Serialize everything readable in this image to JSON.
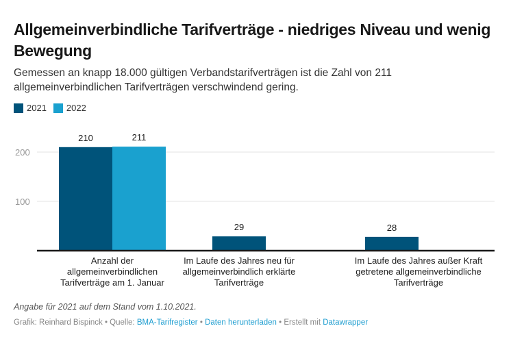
{
  "header": {
    "title": "Allgemeinverbindliche Tarifverträge - niedriges Niveau und wenig Bewegung",
    "subtitle": "Gemessen an knapp 18.000 gültigen Verbandstarifverträgen ist die Zahl von 211 allgemeinverbindlichen Tarifverträgen verschwindend gering."
  },
  "legend": [
    {
      "label": "2021",
      "color": "#00537a"
    },
    {
      "label": "2022",
      "color": "#1aa1cf"
    }
  ],
  "footer": {
    "note": "Angabe für 2021 auf dem Stand vom 1.10.2021.",
    "grafik": "Grafik: Reinhard Bispinck",
    "sep": " • ",
    "quelle_prefix": "Quelle: ",
    "quelle_link": "BMA-Tarifregister",
    "download_link": "Daten herunterladen",
    "created_prefix": "Erstellt mit ",
    "created_link": "Datawrapper"
  },
  "chart_data": {
    "type": "bar",
    "title": "Allgemeinverbindliche Tarifverträge - niedriges Niveau und wenig Bewegung",
    "xlabel": "",
    "ylabel": "",
    "ylim": [
      0,
      200
    ],
    "yticks": [
      100,
      200
    ],
    "grid": true,
    "legend_position": "top-left",
    "categories": [
      "Anzahl der allgemeinverbindlichen Tarifverträge am 1. Januar",
      "Im Laufe des Jahres neu für allgemeinverbindlich erklärte Tarifverträge",
      "Im Laufe des Jahres außer Kraft getretene allgemeinverbindliche Tarifverträge"
    ],
    "category_lines": [
      [
        "Anzahl der",
        "allgemeinverbindlichen",
        "Tarifverträge am 1. Januar"
      ],
      [
        "Im Laufe des Jahres neu für",
        "allgemeinverbindlich erklärte",
        "Tarifverträge"
      ],
      [
        "Im Laufe des Jahres außer Kraft",
        "getretene allgemeinverbindliche",
        "Tarifverträge"
      ]
    ],
    "series": [
      {
        "name": "2021",
        "color": "#00537a",
        "values": [
          210,
          29,
          28
        ]
      },
      {
        "name": "2022",
        "color": "#1aa1cf",
        "values": [
          211,
          null,
          null
        ]
      }
    ]
  }
}
